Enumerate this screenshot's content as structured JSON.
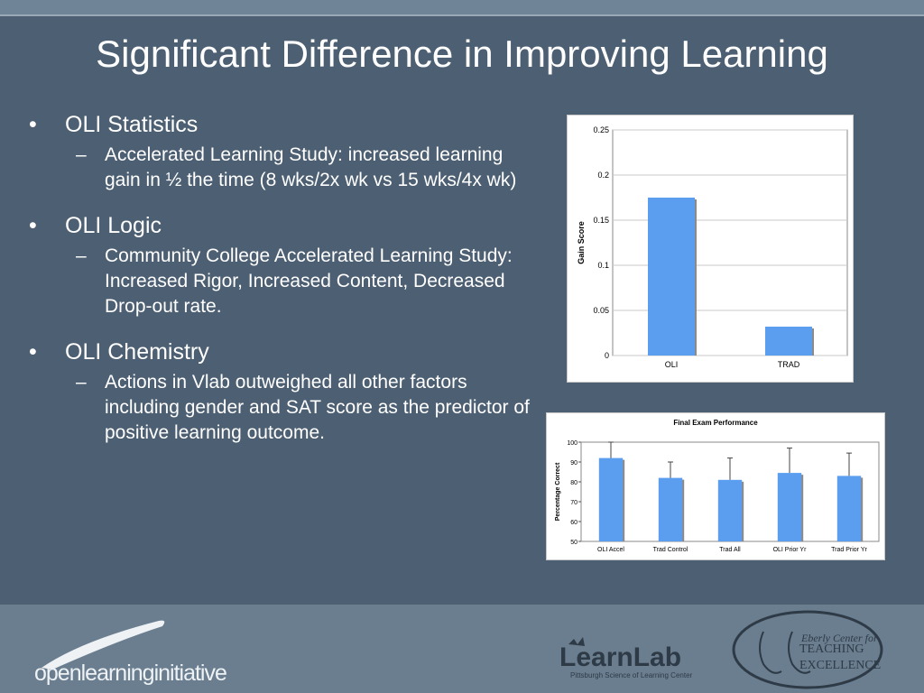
{
  "slide": {
    "title": "Significant Difference in Improving Learning"
  },
  "bullets": [
    {
      "label": "OLI Statistics",
      "sub": "Accelerated Learning Study: increased learning gain in ½ the time (8 wks/2x wk vs 15 wks/4x wk)"
    },
    {
      "label": "OLI Logic",
      "sub": "Community College Accelerated Learning Study: Increased Rigor, Increased Content, Decreased Drop-out rate."
    },
    {
      "label": "OLI Chemistry",
      "sub": "Actions in Vlab outweighed all other factors including gender and SAT score as the predictor of positive learning outcome."
    }
  ],
  "glyphs": {
    "bullet": "•",
    "dash": "–"
  },
  "chart_data": [
    {
      "type": "bar",
      "title": "",
      "ylabel": "Gain Score",
      "xlabel": "",
      "categories": [
        "OLI",
        "TRAD"
      ],
      "values": [
        0.175,
        0.032
      ],
      "ylim": [
        0,
        0.25
      ],
      "yticks": [
        0,
        0.05,
        0.1,
        0.15,
        0.2,
        0.25
      ],
      "ytick_labels": [
        "0",
        "0.05",
        "0.1",
        "0.15",
        "0.2",
        "0.25"
      ],
      "grid": true,
      "bar_color": "#5b9ef0"
    },
    {
      "type": "bar",
      "title": "Final Exam Performance",
      "ylabel": "Percentage Correct",
      "xlabel": "",
      "categories": [
        "OLI Accel",
        "Trad Control",
        "Trad All",
        "OLI Prior Yr",
        "Trad Prior Yr"
      ],
      "values": [
        92,
        82,
        81,
        84.5,
        83
      ],
      "error_upper": [
        100,
        90,
        92,
        97,
        94.5
      ],
      "ylim": [
        50,
        100
      ],
      "yticks": [
        50,
        60,
        70,
        80,
        90,
        100
      ],
      "ytick_labels": [
        "50",
        "60",
        "70",
        "80",
        "90",
        "100"
      ],
      "grid": false,
      "bar_color": "#5b9ef0"
    }
  ],
  "footer": {
    "oli_logo": "openlearninginitiative",
    "learnlab_logo": "LearnLab",
    "learnlab_sub": "Pittsburgh Science of Learning Center",
    "eberly_top": "Eberly Center for",
    "eberly_mid": "TEACHING",
    "eberly_bot": "EXCELLENCE"
  }
}
